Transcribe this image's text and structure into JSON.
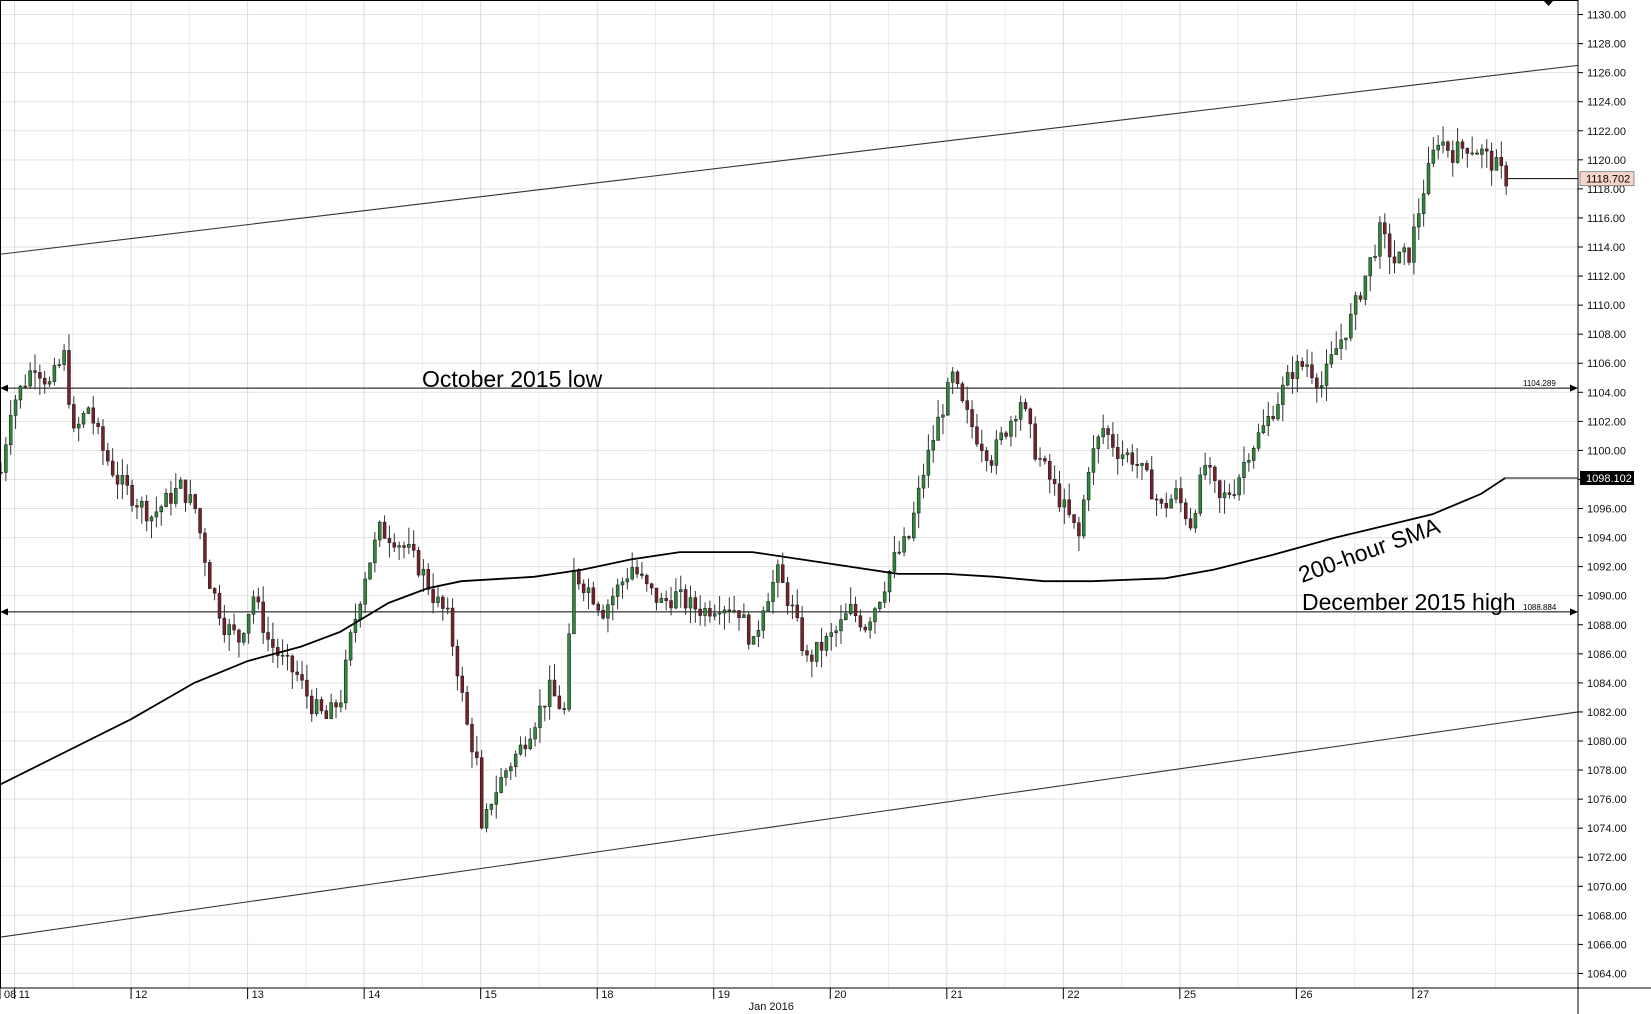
{
  "chart_data": {
    "type": "candlestick",
    "instrument_note": "",
    "y_axis": {
      "range": [
        1063,
        1131
      ],
      "ticks": [
        "1064.00",
        "1066.00",
        "1068.00",
        "1070.00",
        "1072.00",
        "1074.00",
        "1076.00",
        "1078.00",
        "1080.00",
        "1082.00",
        "1084.00",
        "1086.00",
        "1088.00",
        "1090.00",
        "1092.00",
        "1094.00",
        "1096.00",
        "1098.00",
        "1100.00",
        "1102.00",
        "1104.00",
        "1106.00",
        "1108.00",
        "1110.00",
        "1112.00",
        "1114.00",
        "1116.00",
        "1118.00",
        "1120.00",
        "1122.00",
        "1124.00",
        "1126.00",
        "1128.00",
        "1130.00"
      ]
    },
    "x_axis": {
      "day_labels": [
        "08",
        "11",
        "12",
        "13",
        "14",
        "15",
        "18",
        "19",
        "20",
        "21",
        "22",
        "25",
        "26",
        "27"
      ],
      "day_boundaries_hour_index": [
        0,
        3,
        27,
        51,
        75,
        99,
        123,
        147,
        171,
        195,
        219,
        243,
        267,
        291
      ],
      "month_label": "Jan 2016",
      "month_label_hour_index": 155,
      "total_hours": 325
    },
    "grid": true,
    "levels": [
      {
        "name": "October 2015 low",
        "value": 1104.289,
        "value_label": "1104.289"
      },
      {
        "name": "December 2015 high",
        "value": 1088.884,
        "value_label": "1088.884"
      }
    ],
    "current_price": {
      "value": 1118.702,
      "label": "1118.702"
    },
    "sma": {
      "name": "200-hour SMA",
      "current_value": 1098.102,
      "current_label": "1098.102",
      "points": [
        [
          0,
          1077.0
        ],
        [
          12,
          1079.0
        ],
        [
          27,
          1081.5
        ],
        [
          40,
          1084.0
        ],
        [
          51,
          1085.5
        ],
        [
          62,
          1086.5
        ],
        [
          70,
          1087.5
        ],
        [
          80,
          1089.5
        ],
        [
          88,
          1090.5
        ],
        [
          95,
          1091.0
        ],
        [
          110,
          1091.3
        ],
        [
          120,
          1091.8
        ],
        [
          130,
          1092.5
        ],
        [
          140,
          1093.0
        ],
        [
          155,
          1093.0
        ],
        [
          165,
          1092.5
        ],
        [
          175,
          1092.0
        ],
        [
          185,
          1091.5
        ],
        [
          195,
          1091.5
        ],
        [
          205,
          1091.3
        ],
        [
          215,
          1091.0
        ],
        [
          225,
          1091.0
        ],
        [
          240,
          1091.2
        ],
        [
          250,
          1091.8
        ],
        [
          262,
          1092.8
        ],
        [
          275,
          1094.0
        ],
        [
          285,
          1094.8
        ],
        [
          295,
          1095.6
        ],
        [
          305,
          1097.0
        ],
        [
          310,
          1098.102
        ]
      ]
    },
    "trendlines": [
      {
        "name": "upper",
        "from": [
          0,
          1113.5
        ],
        "to": [
          325,
          1126.5
        ]
      },
      {
        "name": "lower",
        "from": [
          0,
          1066.5
        ],
        "to": [
          325,
          1082.0
        ]
      }
    ],
    "annotations": [
      "October 2015 low",
      "200-hour SMA",
      "December 2015 high"
    ],
    "close_path": [
      [
        0,
        1098.5
      ],
      [
        2,
        1103.0
      ],
      [
        4,
        1104.2
      ],
      [
        7,
        1106.0
      ],
      [
        10,
        1104.5
      ],
      [
        13,
        1106.5
      ],
      [
        15,
        1101.0
      ],
      [
        18,
        1103.0
      ],
      [
        21,
        1100.0
      ],
      [
        24,
        1098.0
      ],
      [
        28,
        1096.5
      ],
      [
        31,
        1095.5
      ],
      [
        34,
        1096.5
      ],
      [
        37,
        1097.5
      ],
      [
        40,
        1096.0
      ],
      [
        43,
        1091.0
      ],
      [
        46,
        1088.0
      ],
      [
        49,
        1087.0
      ],
      [
        52,
        1090.0
      ],
      [
        55,
        1087.0
      ],
      [
        58,
        1085.5
      ],
      [
        61,
        1084.5
      ],
      [
        64,
        1082.5
      ],
      [
        67,
        1081.5
      ],
      [
        70,
        1083.0
      ],
      [
        72,
        1087.0
      ],
      [
        75,
        1091.5
      ],
      [
        78,
        1094.5
      ],
      [
        81,
        1094.0
      ],
      [
        84,
        1093.0
      ],
      [
        87,
        1091.5
      ],
      [
        89,
        1090.0
      ],
      [
        92,
        1088.5
      ],
      [
        94,
        1085.0
      ],
      [
        96,
        1081.0
      ],
      [
        98,
        1078.5
      ],
      [
        99,
        1073.5
      ],
      [
        101,
        1076.0
      ],
      [
        104,
        1078.0
      ],
      [
        107,
        1079.5
      ],
      [
        110,
        1081.5
      ],
      [
        113,
        1083.5
      ],
      [
        116,
        1082.0
      ],
      [
        118,
        1091.5
      ],
      [
        121,
        1090.5
      ],
      [
        124,
        1089.0
      ],
      [
        127,
        1090.5
      ],
      [
        130,
        1092.0
      ],
      [
        133,
        1090.5
      ],
      [
        136,
        1089.5
      ],
      [
        139,
        1090.0
      ],
      [
        142,
        1089.3
      ],
      [
        145,
        1089.0
      ],
      [
        148,
        1089.5
      ],
      [
        152,
        1089.0
      ],
      [
        155,
        1086.5
      ],
      [
        157,
        1089.5
      ],
      [
        160,
        1091.5
      ],
      [
        163,
        1089.0
      ],
      [
        166,
        1085.5
      ],
      [
        169,
        1086.5
      ],
      [
        172,
        1087.5
      ],
      [
        175,
        1089.0
      ],
      [
        178,
        1088.0
      ],
      [
        181,
        1090.0
      ],
      [
        184,
        1092.5
      ],
      [
        187,
        1094.0
      ],
      [
        190,
        1098.5
      ],
      [
        193,
        1102.0
      ],
      [
        196,
        1105.0
      ],
      [
        198,
        1103.0
      ],
      [
        201,
        1101.0
      ],
      [
        204,
        1099.5
      ],
      [
        207,
        1101.5
      ],
      [
        210,
        1103.5
      ],
      [
        213,
        1100.0
      ],
      [
        216,
        1098.0
      ],
      [
        219,
        1096.0
      ],
      [
        222,
        1094.0
      ],
      [
        224,
        1099.0
      ],
      [
        227,
        1101.5
      ],
      [
        230,
        1100.0
      ],
      [
        233,
        1099.5
      ],
      [
        236,
        1098.0
      ],
      [
        239,
        1096.0
      ],
      [
        242,
        1097.0
      ],
      [
        245,
        1095.0
      ],
      [
        248,
        1099.0
      ],
      [
        251,
        1096.5
      ],
      [
        254,
        1097.5
      ],
      [
        257,
        1100.0
      ],
      [
        260,
        1101.5
      ],
      [
        263,
        1103.5
      ],
      [
        266,
        1105.5
      ],
      [
        269,
        1106.0
      ],
      [
        272,
        1104.5
      ],
      [
        275,
        1107.0
      ],
      [
        278,
        1109.0
      ],
      [
        281,
        1112.0
      ],
      [
        284,
        1115.0
      ],
      [
        287,
        1113.0
      ],
      [
        290,
        1113.5
      ],
      [
        293,
        1118.0
      ],
      [
        296,
        1121.5
      ],
      [
        299,
        1120.5
      ],
      [
        302,
        1121.0
      ],
      [
        305,
        1120.5
      ],
      [
        308,
        1119.5
      ],
      [
        310,
        1118.702
      ]
    ]
  }
}
